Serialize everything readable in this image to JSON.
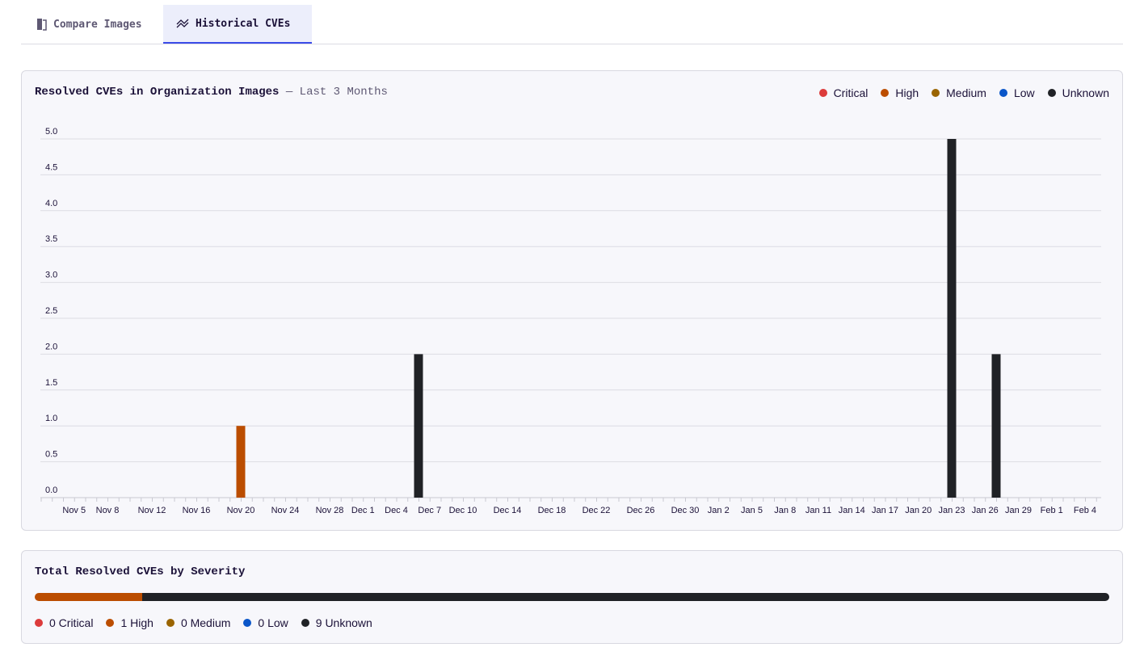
{
  "tabs": [
    {
      "label": "Compare Images",
      "icon": "compare-images-icon",
      "active": false
    },
    {
      "label": "Historical CVEs",
      "icon": "trend-chart-icon",
      "active": true
    }
  ],
  "colors": {
    "Critical": "#dc3b3b",
    "High": "#bb4d00",
    "Medium": "#9a6400",
    "Low": "#0a56c9",
    "Unknown": "#202226"
  },
  "history": {
    "title": "Resolved CVEs in Organization Images",
    "subtitle": "— Last 3 Months",
    "legend": [
      "Critical",
      "High",
      "Medium",
      "Low",
      "Unknown"
    ]
  },
  "chart_data": {
    "type": "bar",
    "stacked": true,
    "title": "Resolved CVEs in Organization Images — Last 3 Months",
    "ylim": [
      0,
      5
    ],
    "yticks": [
      "0.0",
      "0.5",
      "1.0",
      "1.5",
      "2.0",
      "2.5",
      "3.0",
      "3.5",
      "4.0",
      "4.5",
      "5.0"
    ],
    "xrange": [
      "Nov 2",
      "Feb 5"
    ],
    "xticks": [
      "Nov 5",
      "Nov 8",
      "Nov 12",
      "Nov 16",
      "Nov 20",
      "Nov 24",
      "Nov 28",
      "Dec 1",
      "Dec 4",
      "Dec 7",
      "Dec 10",
      "Dec 14",
      "Dec 18",
      "Dec 22",
      "Dec 26",
      "Dec 30",
      "Jan 2",
      "Jan 5",
      "Jan 8",
      "Jan 11",
      "Jan 14",
      "Jan 17",
      "Jan 20",
      "Jan 23",
      "Jan 26",
      "Jan 29",
      "Feb 1",
      "Feb 4"
    ],
    "grid": true,
    "legend_position": "top-right",
    "series": [
      {
        "name": "Critical",
        "points": []
      },
      {
        "name": "High",
        "points": [
          {
            "x": "Nov 20",
            "y": 1
          }
        ]
      },
      {
        "name": "Medium",
        "points": []
      },
      {
        "name": "Low",
        "points": []
      },
      {
        "name": "Unknown",
        "points": [
          {
            "x": "Dec 6",
            "y": 2
          },
          {
            "x": "Jan 23",
            "y": 5
          },
          {
            "x": "Jan 27",
            "y": 2
          }
        ]
      }
    ]
  },
  "totals": {
    "title": "Total Resolved CVEs by Severity",
    "items": [
      {
        "name": "Critical",
        "count": 0,
        "label": "0 Critical"
      },
      {
        "name": "High",
        "count": 1,
        "label": "1 High"
      },
      {
        "name": "Medium",
        "count": 0,
        "label": "0 Medium"
      },
      {
        "name": "Low",
        "count": 0,
        "label": "0 Low"
      },
      {
        "name": "Unknown",
        "count": 9,
        "label": "9 Unknown"
      }
    ]
  }
}
